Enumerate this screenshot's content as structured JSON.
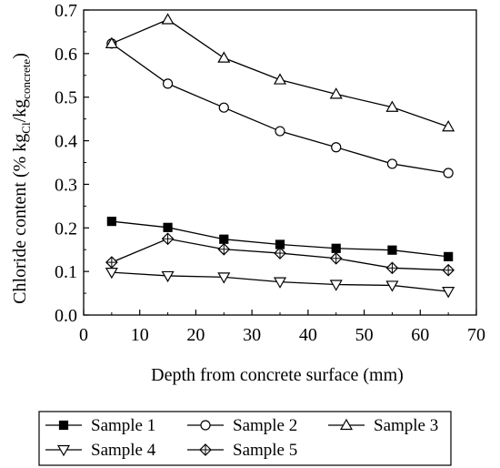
{
  "chart_data": {
    "type": "line",
    "xlabel": "Depth from concrete surface (mm)",
    "ylabel": {
      "main": "Chloride content (% kg",
      "sub1": "Cl",
      "mid": "/kg",
      "sub2": "concrete",
      "end": ")"
    },
    "xlim": [
      0,
      70
    ],
    "ylim": [
      0.0,
      0.7
    ],
    "x_ticks": [
      "0",
      "10",
      "20",
      "30",
      "40",
      "50",
      "60",
      "70"
    ],
    "y_ticks": [
      "0.0",
      "0.1",
      "0.2",
      "0.3",
      "0.4",
      "0.5",
      "0.6",
      "0.7"
    ],
    "grid": false,
    "legend_position": "bottom",
    "x": [
      5,
      15,
      25,
      35,
      45,
      55,
      65
    ],
    "series": [
      {
        "name": "Sample 1",
        "marker": "square-filled",
        "values": [
          0.215,
          0.201,
          0.174,
          0.162,
          0.153,
          0.149,
          0.134
        ]
      },
      {
        "name": "Sample 2",
        "marker": "circle-open",
        "values": [
          0.623,
          0.531,
          0.476,
          0.422,
          0.385,
          0.347,
          0.326
        ]
      },
      {
        "name": "Sample 3",
        "marker": "triangle-up-open",
        "values": [
          0.623,
          0.678,
          0.59,
          0.54,
          0.507,
          0.477,
          0.432
        ]
      },
      {
        "name": "Sample 4",
        "marker": "triangle-down-open",
        "values": [
          0.098,
          0.09,
          0.087,
          0.076,
          0.07,
          0.068,
          0.054
        ]
      },
      {
        "name": "Sample 5",
        "marker": "diamond-crossed",
        "values": [
          0.121,
          0.175,
          0.151,
          0.142,
          0.13,
          0.108,
          0.103
        ]
      }
    ],
    "line_color": "#000000"
  }
}
